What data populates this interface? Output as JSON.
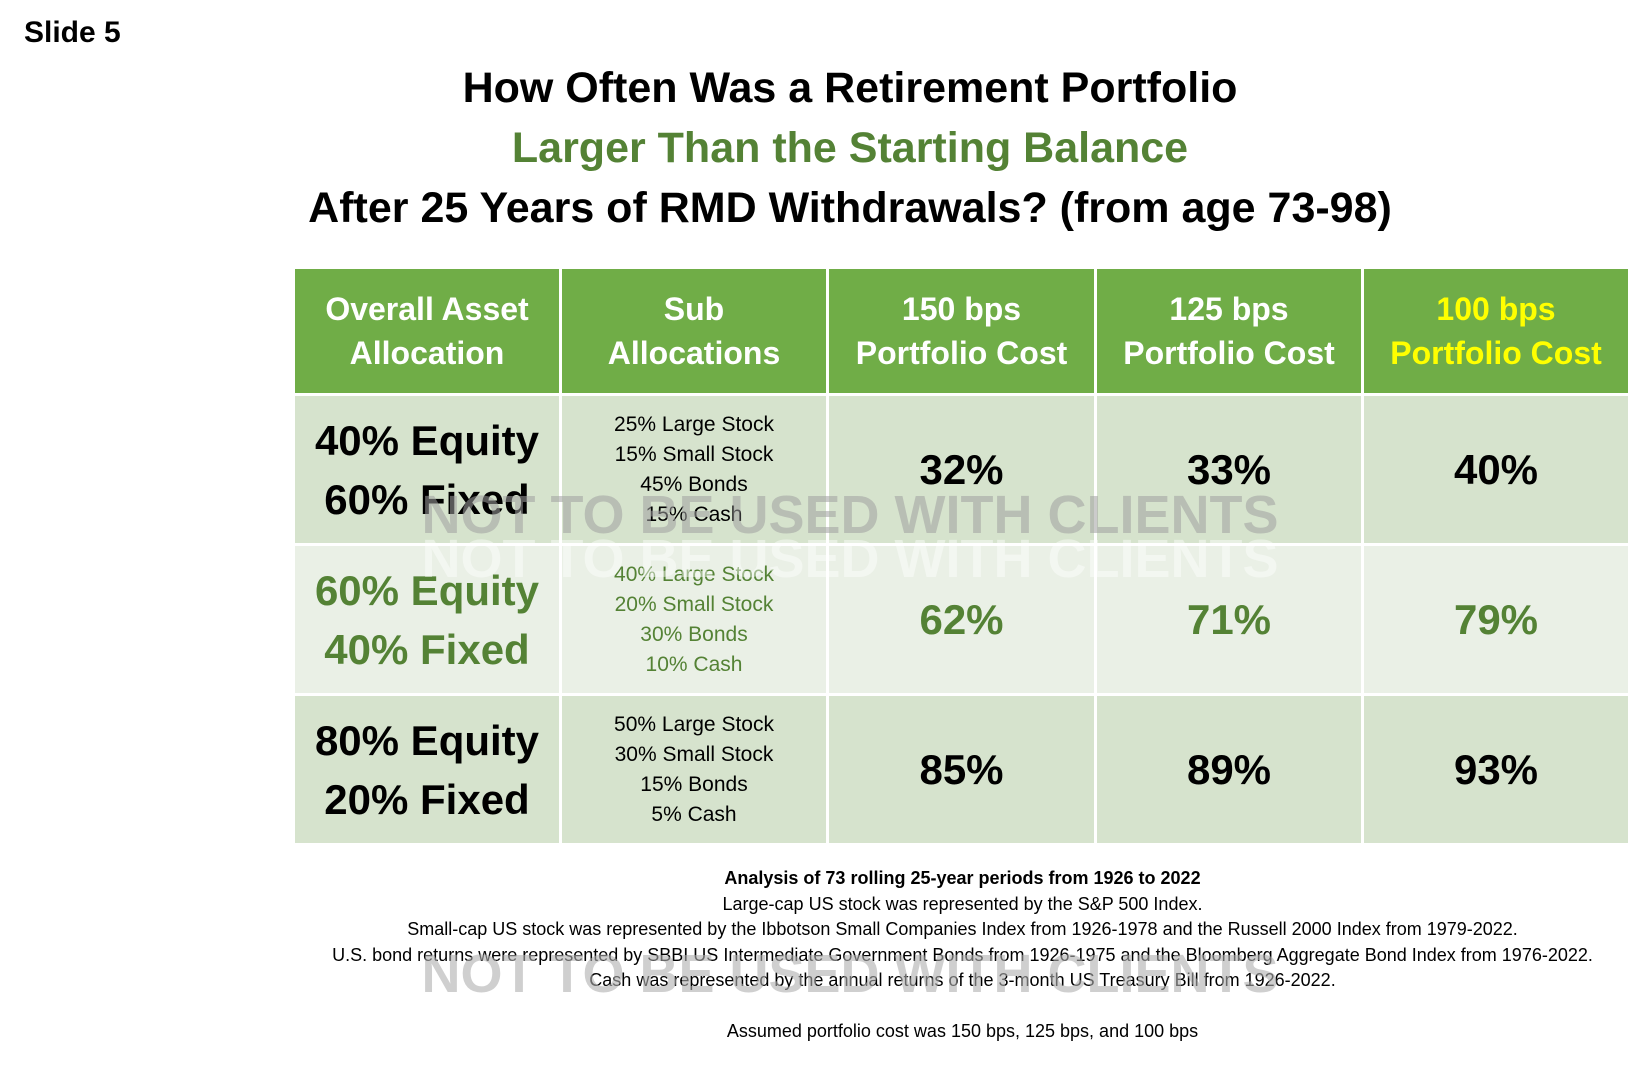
{
  "slide_label": "Slide 5",
  "title": {
    "line1": "How Often Was a Retirement Portfolio",
    "line2": "Larger Than the Starting Balance",
    "line3": "After 25 Years of RMD Withdrawals? (from age 73-98)"
  },
  "colors": {
    "header_bg": "#70ad47",
    "accent_green": "#548235",
    "highlight_yellow": "#ffff00",
    "row_dark": "#d6e3cd",
    "row_light": "#eaf0e6"
  },
  "table": {
    "headers": [
      {
        "line1": "Overall Asset",
        "line2": "Allocation"
      },
      {
        "line1": "Sub",
        "line2": "Allocations"
      },
      {
        "line1": "150 bps",
        "line2": "Portfolio Cost"
      },
      {
        "line1": "125 bps",
        "line2": "Portfolio Cost"
      },
      {
        "line1": "100 bps",
        "line2": "Portfolio Cost"
      }
    ],
    "rows": [
      {
        "allocation": [
          "40% Equity",
          "60% Fixed"
        ],
        "sub": [
          "25% Large Stock",
          "15% Small Stock",
          "45% Bonds",
          "15% Cash"
        ],
        "values": [
          "32%",
          "33%",
          "40%"
        ]
      },
      {
        "allocation": [
          "60% Equity",
          "40% Fixed"
        ],
        "sub": [
          "40% Large Stock",
          "20% Small Stock",
          "30% Bonds",
          "10% Cash"
        ],
        "values": [
          "62%",
          "71%",
          "79%"
        ]
      },
      {
        "allocation": [
          "80% Equity",
          "20% Fixed"
        ],
        "sub": [
          "50% Large Stock",
          "30% Small Stock",
          "15% Bonds",
          "5% Cash"
        ],
        "values": [
          "85%",
          "89%",
          "93%"
        ]
      }
    ]
  },
  "watermark": "NOT TO BE USED WITH CLIENTS",
  "notes": {
    "heading": "Analysis of 73 rolling 25-year periods from 1926 to 2022",
    "lines": [
      "Large-cap US stock was represented by the S&P 500 Index.",
      "Small-cap US stock was represented by the Ibbotson Small Companies Index from 1926-1978 and the Russell 2000 Index from 1979-2022.",
      "U.S. bond returns were represented by SBBI US Intermediate Government Bonds from 1926-1975 and the Bloomberg Aggregate Bond Index from 1976-2022.",
      "Cash was represented by the annual returns of the 3-month US Treasury Bill from 1926-2022."
    ],
    "cost_line": "Assumed portfolio cost was 150 bps, 125 bps, and 100 bps"
  }
}
